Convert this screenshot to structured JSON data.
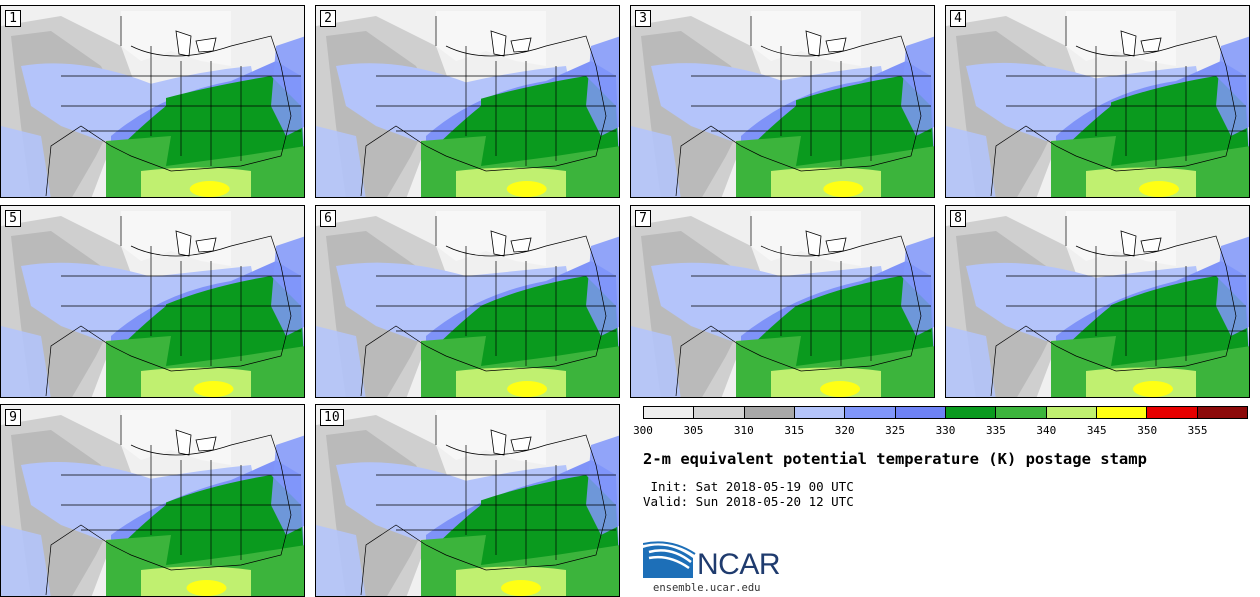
{
  "panels": [
    {
      "label": "1"
    },
    {
      "label": "2"
    },
    {
      "label": "3"
    },
    {
      "label": "4"
    },
    {
      "label": "5"
    },
    {
      "label": "6"
    },
    {
      "label": "7"
    },
    {
      "label": "8"
    },
    {
      "label": "9"
    },
    {
      "label": "10"
    }
  ],
  "colorbar": {
    "colors": [
      "#eeeeee",
      "#d4d4d4",
      "#a8a8a8",
      "#b4c4fa",
      "#8096fa",
      "#6e82f5",
      "#0a9a1e",
      "#3cb43c",
      "#c0f070",
      "#ffff14",
      "#e60000",
      "#8c0a0a"
    ],
    "tick_labels": [
      "300",
      "305",
      "310",
      "315",
      "320",
      "325",
      "330",
      "335",
      "340",
      "345",
      "350",
      "355"
    ]
  },
  "title": "2-m equivalent potential temperature (K) postage stamp",
  "init": " Init: Sat 2018-05-19 00 UTC",
  "valid": "Valid: Sun 2018-05-20 12 UTC",
  "logo": {
    "name": "NCAR",
    "site": "ensemble.ucar.edu"
  }
}
